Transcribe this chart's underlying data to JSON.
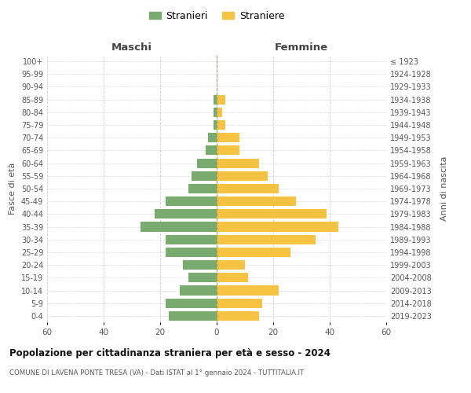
{
  "age_groups": [
    "100+",
    "95-99",
    "90-94",
    "85-89",
    "80-84",
    "75-79",
    "70-74",
    "65-69",
    "60-64",
    "55-59",
    "50-54",
    "45-49",
    "40-44",
    "35-39",
    "30-34",
    "25-29",
    "20-24",
    "15-19",
    "10-14",
    "5-9",
    "0-4"
  ],
  "birth_years": [
    "≤ 1923",
    "1924-1928",
    "1929-1933",
    "1934-1938",
    "1939-1943",
    "1944-1948",
    "1949-1953",
    "1954-1958",
    "1959-1963",
    "1964-1968",
    "1969-1973",
    "1974-1978",
    "1979-1983",
    "1984-1988",
    "1989-1993",
    "1994-1998",
    "1999-2003",
    "2004-2008",
    "2009-2013",
    "2014-2018",
    "2019-2023"
  ],
  "maschi": [
    0,
    0,
    0,
    1,
    1,
    1,
    3,
    4,
    7,
    9,
    10,
    18,
    22,
    27,
    18,
    18,
    12,
    10,
    13,
    18,
    17
  ],
  "femmine": [
    0,
    0,
    0,
    3,
    2,
    3,
    8,
    8,
    15,
    18,
    22,
    28,
    39,
    43,
    35,
    26,
    10,
    11,
    22,
    16,
    15
  ],
  "male_color": "#7aab6e",
  "female_color": "#f5c242",
  "background_color": "#ffffff",
  "grid_color": "#cccccc",
  "title": "Popolazione per cittadinanza straniera per età e sesso - 2024",
  "subtitle": "COMUNE DI LAVENA PONTE TRESA (VA) - Dati ISTAT al 1° gennaio 2024 - TUTTITALIA.IT",
  "xlabel_left": "Maschi",
  "xlabel_right": "Femmine",
  "ylabel_left": "Fasce di età",
  "ylabel_right": "Anni di nascita",
  "xlim": 60,
  "legend_stranieri": "Stranieri",
  "legend_straniere": "Straniere"
}
